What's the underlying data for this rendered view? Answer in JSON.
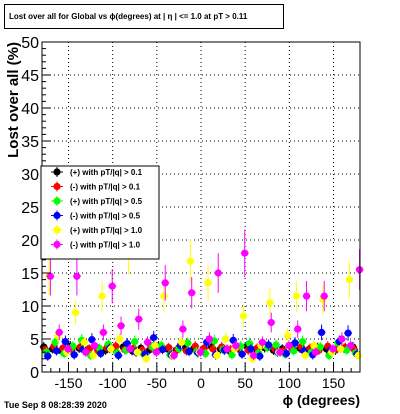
{
  "title": "Lost over all for Global vs ϕ(degrees) at | η | <= 1.0 at pT > 0.11",
  "footer": "Tue Sep  8 08:28:39 2020",
  "chart_data": {
    "type": "scatter",
    "xlabel": "ϕ (degrees)",
    "ylabel": "Lost over all (%)",
    "xlim": [
      -180,
      180
    ],
    "ylim": [
      0,
      50
    ],
    "xticks": [
      -150,
      -100,
      -50,
      0,
      50,
      100,
      150
    ],
    "yticks": [
      0,
      5,
      10,
      15,
      20,
      25,
      30,
      35,
      40,
      45,
      50
    ],
    "grid": true,
    "legend_position": "left-middle",
    "series": [
      {
        "name": "(+) with pT/|q| > 0.1",
        "color": "#000000",
        "x": [
          -175,
          -165,
          -155,
          -145,
          -135,
          -125,
          -115,
          -105,
          -95,
          -85,
          -75,
          -65,
          -55,
          -45,
          -35,
          -25,
          -15,
          -5,
          5,
          15,
          25,
          35,
          45,
          55,
          65,
          75,
          85,
          95,
          105,
          115,
          125,
          135,
          145,
          155,
          165,
          175
        ],
        "y": [
          3.8,
          3.5,
          3.2,
          3.9,
          3.6,
          3.4,
          3.7,
          3.3,
          3.5,
          3.8,
          3.2,
          3.6,
          3.4,
          3.9,
          3.5,
          3.3,
          3.7,
          3.6,
          3.4,
          3.8,
          3.5,
          3.2,
          3.6,
          3.9,
          3.4,
          3.7,
          3.3,
          3.5,
          3.8,
          3.6,
          3.4,
          3.7,
          3.5,
          3.3,
          3.6,
          3.8
        ]
      },
      {
        "name": "(-) with pT/|q| > 0.1",
        "color": "#ff0000",
        "x": [
          -175,
          -165,
          -155,
          -145,
          -135,
          -125,
          -115,
          -105,
          -95,
          -85,
          -75,
          -65,
          -55,
          -45,
          -35,
          -25,
          -15,
          -5,
          5,
          15,
          25,
          35,
          45,
          55,
          65,
          75,
          85,
          95,
          105,
          115,
          125,
          135,
          145,
          155,
          165,
          175
        ],
        "y": [
          3.4,
          3.9,
          3.6,
          3.3,
          3.8,
          3.5,
          3.2,
          3.7,
          3.9,
          3.4,
          3.6,
          3.3,
          3.8,
          3.5,
          3.7,
          3.4,
          3.2,
          3.9,
          3.6,
          3.5,
          3.8,
          3.4,
          3.7,
          3.3,
          3.6,
          3.9,
          3.5,
          3.2,
          3.4,
          3.8,
          3.6,
          3.3,
          3.9,
          3.5,
          3.7,
          3.4
        ]
      },
      {
        "name": "(+) with pT/|q| > 0.5",
        "color": "#00ff00",
        "x": [
          -175,
          -165,
          -155,
          -145,
          -135,
          -125,
          -115,
          -105,
          -95,
          -85,
          -75,
          -65,
          -55,
          -45,
          -35,
          -25,
          -15,
          -5,
          5,
          15,
          25,
          35,
          45,
          55,
          65,
          75,
          85,
          95,
          105,
          115,
          125,
          135,
          145,
          155,
          165,
          175
        ],
        "y": [
          3.0,
          4.5,
          2.8,
          3.9,
          4.8,
          2.5,
          3.6,
          4.2,
          2.9,
          3.3,
          4.6,
          2.7,
          3.8,
          4.0,
          2.6,
          3.5,
          4.4,
          3.1,
          2.8,
          4.7,
          3.4,
          2.6,
          3.9,
          4.3,
          2.9,
          3.7,
          4.1,
          2.7,
          3.2,
          4.6,
          3.0,
          3.8,
          2.5,
          4.4,
          3.3,
          2.9
        ]
      },
      {
        "name": "(-) with pT/|q| > 0.5",
        "color": "#0000ff",
        "x": [
          -175,
          -165,
          -155,
          -145,
          -135,
          -125,
          -115,
          -105,
          -95,
          -85,
          -75,
          -65,
          -55,
          -45,
          -35,
          -25,
          -15,
          -5,
          5,
          15,
          25,
          35,
          45,
          55,
          65,
          75,
          85,
          95,
          105,
          115,
          125,
          135,
          145,
          155,
          165,
          175
        ],
        "y": [
          2.4,
          3.2,
          4.6,
          2.6,
          3.4,
          4.9,
          2.8,
          3.6,
          2.5,
          4.3,
          3.0,
          2.7,
          5.2,
          3.4,
          2.6,
          4.0,
          3.1,
          2.9,
          4.5,
          2.6,
          3.3,
          4.8,
          2.7,
          3.5,
          2.4,
          4.1,
          3.0,
          2.8,
          4.4,
          3.2,
          2.6,
          6.0,
          3.3,
          4.6,
          5.9,
          2.7
        ]
      },
      {
        "name": "(+) with pT/|q| > 1.0",
        "color": "#ffff00",
        "x": [
          -175,
          -165,
          -155,
          -145,
          -135,
          -125,
          -115,
          -105,
          -95,
          -85,
          -75,
          -65,
          -55,
          -45,
          -35,
          -25,
          -15,
          -5,
          5,
          15,
          25,
          35,
          45,
          55,
          65,
          75,
          85,
          95,
          105,
          115,
          125,
          135,
          145,
          155,
          165,
          175
        ],
        "y": [
          14.5,
          5.5,
          3.0,
          9.0,
          4.5,
          2.5,
          11.5,
          3.5,
          5.0,
          18.5,
          3.0,
          2.0,
          4.0,
          11.5,
          2.5,
          4.5,
          16.8,
          3.0,
          13.5,
          2.5,
          5.0,
          3.5,
          8.5,
          2.0,
          4.0,
          10.5,
          3.0,
          5.5,
          11.5,
          2.5,
          4.0,
          11.0,
          3.0,
          3.5,
          14.0,
          2.5
        ]
      },
      {
        "name": "(-) with pT/|q| > 1.0",
        "color": "#ff00ff",
        "x": [
          -175,
          -165,
          -155,
          -145,
          -135,
          -125,
          -115,
          -105,
          -95,
          -85,
          -75,
          -65,
          -55,
          -45,
          -35,
          -25,
          -15,
          -5,
          5,
          15,
          25,
          35,
          45,
          55,
          65,
          75,
          85,
          95,
          105,
          115,
          125,
          135,
          145,
          155,
          165,
          175
        ],
        "y": [
          14.5,
          6.0,
          3.5,
          14.5,
          3.0,
          4.0,
          6.0,
          13.0,
          7.0,
          3.5,
          8.0,
          4.5,
          3.0,
          13.5,
          2.5,
          6.5,
          12.0,
          3.0,
          5.0,
          15.0,
          3.5,
          4.0,
          18.0,
          2.5,
          4.5,
          7.5,
          3.0,
          4.0,
          6.5,
          11.5,
          3.0,
          11.5,
          3.5,
          5.0,
          4.0,
          15.5
        ]
      }
    ]
  }
}
